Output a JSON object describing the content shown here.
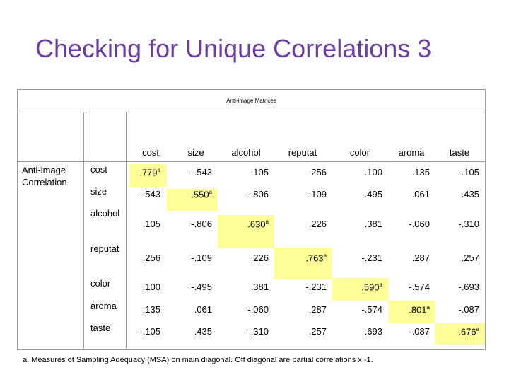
{
  "title": "Checking for Unique Correlations 3",
  "table": {
    "heading": "Anti-image Matrices",
    "section_label": "Anti-image Correlation",
    "columns": [
      "cost",
      "size",
      "alcohol",
      "reputat",
      "color",
      "aroma",
      "taste"
    ],
    "rows": [
      {
        "label": "cost",
        "values": [
          ".779",
          "-.543",
          ".105",
          ".256",
          ".100",
          ".135",
          "-.105"
        ]
      },
      {
        "label": "size",
        "values": [
          "-.543",
          ".550",
          "-.806",
          "-.109",
          "-.495",
          ".061",
          ".435"
        ]
      },
      {
        "label": "alcohol",
        "values": [
          ".105",
          "-.806",
          ".630",
          ".226",
          ".381",
          "-.060",
          "-.310"
        ]
      },
      {
        "label": "reputat",
        "values": [
          ".256",
          "-.109",
          ".226",
          ".763",
          "-.231",
          ".287",
          ".257"
        ]
      },
      {
        "label": "color",
        "values": [
          ".100",
          "-.495",
          ".381",
          "-.231",
          ".590",
          "-.574",
          "-.693"
        ]
      },
      {
        "label": "aroma",
        "values": [
          ".135",
          ".061",
          "-.060",
          ".287",
          "-.574",
          ".801",
          "-.087"
        ]
      },
      {
        "label": "taste",
        "values": [
          "-.105",
          ".435",
          "-.310",
          ".257",
          "-.693",
          "-.087",
          ".676"
        ]
      }
    ],
    "diagonal_marker": "a",
    "highlight_color": "#ffff99"
  },
  "footnote": "a. Measures of Sampling Adequacy (MSA) on main diagonal.  Off diagonal are partial correlations x -1."
}
